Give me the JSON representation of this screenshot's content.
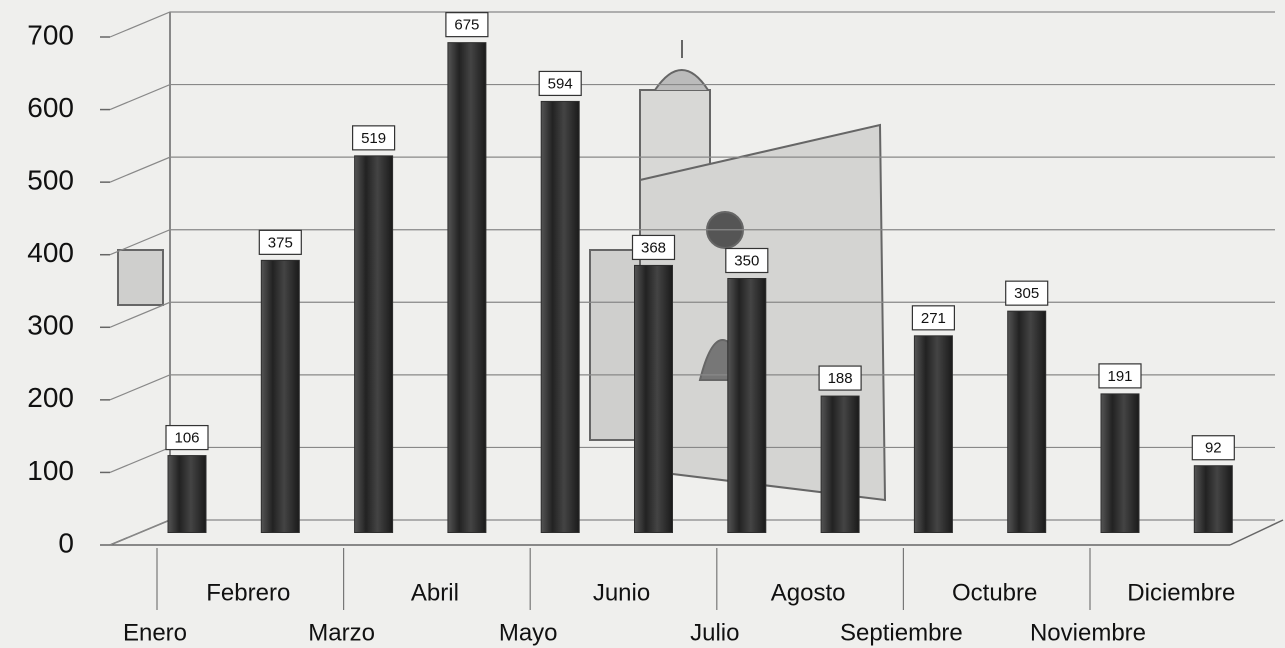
{
  "chart_data": {
    "type": "bar",
    "categories": [
      "Enero",
      "Febrero",
      "Marzo",
      "Abril",
      "Mayo",
      "Junio",
      "Julio",
      "Agosto",
      "Septiembre",
      "Octubre",
      "Noviembre",
      "Diciembre"
    ],
    "values": [
      106,
      375,
      519,
      675,
      594,
      368,
      350,
      188,
      271,
      305,
      191,
      92
    ],
    "color": "#2e2e2e",
    "ylim": [
      0,
      700
    ],
    "yticks": [
      0,
      100,
      200,
      300,
      400,
      500,
      600,
      700
    ],
    "grid": true
  }
}
